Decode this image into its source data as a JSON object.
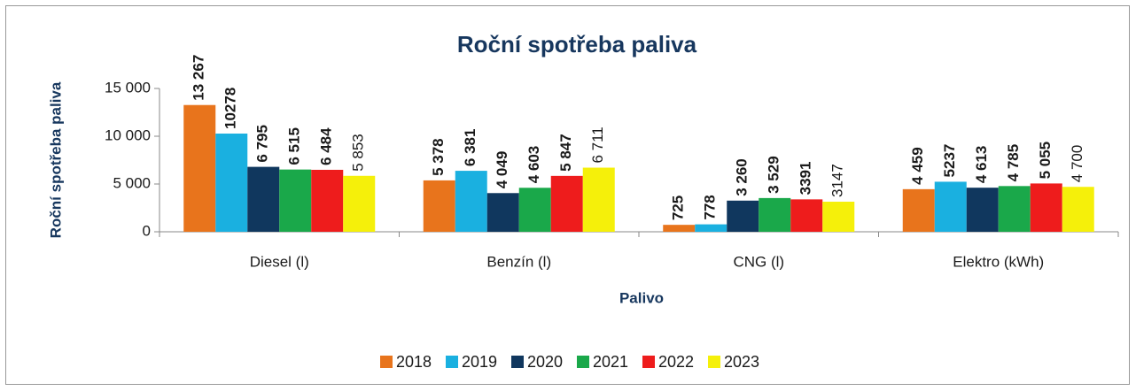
{
  "chart_data": {
    "type": "bar",
    "title": "Roční spotřeba paliva",
    "y_label": "Roční spotřeba paliva",
    "x_label": "Palivo",
    "categories": [
      "Diesel (l)",
      "Benzín (l)",
      "CNG (l)",
      "Elektro (kWh)"
    ],
    "series": [
      {
        "name": "2018",
        "color": "#e8741c",
        "values": [
          13267,
          5378,
          725,
          4459
        ],
        "value_labels": [
          "13 267",
          "5 378",
          "725",
          "4 459"
        ]
      },
      {
        "name": "2019",
        "color": "#1ab0e0",
        "values": [
          10278,
          6381,
          778,
          5237
        ],
        "value_labels": [
          "10278",
          "6 381",
          "778",
          "5237"
        ]
      },
      {
        "name": "2020",
        "color": "#10375e",
        "values": [
          6795,
          4049,
          3260,
          4613
        ],
        "value_labels": [
          "6 795",
          "4 049",
          "3 260",
          "4 613"
        ]
      },
      {
        "name": "2021",
        "color": "#1aa84a",
        "values": [
          6515,
          4603,
          3529,
          4785
        ],
        "value_labels": [
          "6 515",
          "4 603",
          "3 529",
          "4 785"
        ]
      },
      {
        "name": "2022",
        "color": "#ee1c1c",
        "values": [
          6484,
          5847,
          3391,
          5055
        ],
        "value_labels": [
          "6 484",
          "5 847",
          "3391",
          "5 055"
        ]
      },
      {
        "name": "2023",
        "color": "#f5f00a",
        "values": [
          5853,
          6711,
          3147,
          4700
        ],
        "value_labels": [
          "5 853",
          "6 711",
          "3147",
          "4 700"
        ]
      }
    ],
    "ylim": [
      0,
      15000
    ],
    "yticks": [
      0,
      {
        "value": 5000,
        "label": "5 000"
      },
      {
        "value": 10000,
        "label": "10 000"
      },
      {
        "value": 15000,
        "label": "15 000"
      }
    ],
    "legend": "bottom"
  }
}
